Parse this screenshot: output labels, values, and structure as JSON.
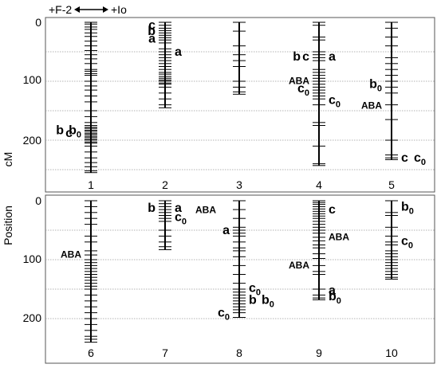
{
  "legend": {
    "left_label": "+F-2",
    "right_label": "+Io"
  },
  "axis": {
    "title_word1": "Position",
    "title_word2": "cM",
    "top_ticks": [
      "0",
      "100",
      "200"
    ],
    "bottom_ticks": [
      "0",
      "100",
      "200"
    ]
  },
  "colors": {
    "frame": "#555555",
    "gridline": "#9a9a9a",
    "ink": "#000000"
  },
  "chart_data": {
    "type": "linkage-map",
    "unit": "cM",
    "ylim": [
      0,
      260
    ],
    "gridlines_cM": [
      50,
      100,
      150,
      200,
      250
    ],
    "panels": [
      {
        "chromosomes": [
          {
            "label": "1",
            "length": 255,
            "markers": [
              0,
              3,
              8,
              12,
              18,
              24,
              32,
              40,
              48,
              55,
              62,
              70,
              80,
              83,
              87,
              90,
              100,
              108,
              115,
              125,
              135,
              150,
              160,
              170,
              175,
              178,
              180,
              183,
              185,
              188,
              190,
              193,
              195,
              198,
              200,
              203,
              205,
              210,
              220,
              230,
              238,
              245,
              252,
              255
            ],
            "qtl": [
              {
                "text": "b",
                "sub": "0",
                "pos": 183,
                "side": "left"
              },
              {
                "text": "c",
                "pos": 188,
                "side": "left"
              },
              {
                "text": "b",
                "pos": 183,
                "side": "left"
              }
            ]
          },
          {
            "label": "2",
            "length": 145,
            "markers": [
              0,
              5,
              10,
              14,
              18,
              22,
              26,
              30,
              35,
              45,
              50,
              55,
              60,
              65,
              70,
              75,
              80,
              85,
              88,
              92,
              95,
              98,
              100,
              103,
              105,
              110,
              120,
              130,
              140,
              145
            ],
            "qtl": [
              {
                "text": "c",
                "pos": 5,
                "side": "left"
              },
              {
                "text": "b",
                "pos": 15,
                "side": "left"
              },
              {
                "text": "a",
                "pos": 28,
                "side": "left"
              },
              {
                "text": "a",
                "pos": 50,
                "side": "right"
              }
            ]
          },
          {
            "label": "3",
            "length": 122,
            "markers": [
              0,
              15,
              40,
              55,
              65,
              75,
              100,
              110,
              118,
              122
            ],
            "qtl": []
          },
          {
            "label": "4",
            "length": 243,
            "markers": [
              0,
              5,
              25,
              30,
              50,
              55,
              60,
              65,
              80,
              85,
              90,
              95,
              100,
              105,
              110,
              115,
              120,
              125,
              130,
              140,
              170,
              175,
              210,
              240,
              243
            ],
            "qtl": [
              {
                "text": "c",
                "pos": 58,
                "side": "left"
              },
              {
                "text": "b",
                "pos": 58,
                "side": "left"
              },
              {
                "text": "a",
                "pos": 58,
                "side": "right"
              },
              {
                "text": "ABA",
                "pos": 98,
                "side": "left",
                "small": true
              },
              {
                "text": "c",
                "sub": "0",
                "pos": 112,
                "side": "left"
              },
              {
                "text": "c",
                "sub": "0",
                "pos": 132,
                "side": "right"
              }
            ]
          },
          {
            "label": "5",
            "length": 233,
            "markers": [
              0,
              10,
              25,
              40,
              60,
              70,
              80,
              90,
              100,
              110,
              120,
              140,
              165,
              200,
              225,
              230,
              233
            ],
            "qtl": [
              {
                "text": "b",
                "sub": "0",
                "pos": 105,
                "side": "left"
              },
              {
                "text": "ABA",
                "pos": 140,
                "side": "left",
                "small": true
              },
              {
                "text": "c",
                "pos": 230,
                "side": "right"
              },
              {
                "text": "c",
                "sub": "0",
                "pos": 230,
                "side": "right"
              }
            ]
          }
        ]
      },
      {
        "chromosomes": [
          {
            "label": "6",
            "length": 240,
            "markers": [
              0,
              10,
              20,
              30,
              40,
              60,
              70,
              85,
              92,
              100,
              105,
              110,
              115,
              120,
              125,
              130,
              135,
              140,
              145,
              150,
              160,
              170,
              180,
              190,
              200,
              210,
              220,
              230,
              235,
              240
            ],
            "qtl": [
              {
                "text": "ABA",
                "pos": 90,
                "side": "left",
                "small": true
              }
            ]
          },
          {
            "label": "7",
            "length": 83,
            "markers": [
              0,
              5,
              10,
              15,
              20,
              25,
              30,
              35,
              50,
              60,
              70,
              78,
              83
            ],
            "qtl": [
              {
                "text": "b",
                "pos": 12,
                "side": "left"
              },
              {
                "text": "a",
                "pos": 12,
                "side": "right"
              },
              {
                "text": "ABA",
                "pos": 14,
                "side": "right",
                "small": true
              },
              {
                "text": "c",
                "sub": "0",
                "pos": 28,
                "side": "right"
              }
            ]
          },
          {
            "label": "8",
            "length": 198,
            "markers": [
              0,
              15,
              30,
              45,
              50,
              55,
              60,
              70,
              80,
              85,
              95,
              110,
              125,
              140,
              150,
              155,
              160,
              165,
              170,
              175,
              180,
              185,
              190,
              198
            ],
            "qtl": [
              {
                "text": "a",
                "pos": 50,
                "side": "left"
              },
              {
                "text": "c",
                "sub": "0",
                "pos": 148,
                "side": "right"
              },
              {
                "text": "b",
                "pos": 168,
                "side": "right"
              },
              {
                "text": "b",
                "sub": "0",
                "pos": 168,
                "side": "right"
              },
              {
                "text": "c",
                "sub": "0",
                "pos": 190,
                "side": "left"
              }
            ]
          },
          {
            "label": "9",
            "length": 168,
            "markers": [
              0,
              3,
              6,
              10,
              14,
              18,
              22,
              26,
              30,
              35,
              40,
              45,
              50,
              55,
              62,
              68,
              75,
              80,
              90,
              98,
              110,
              120,
              125,
              150,
              160,
              165,
              168
            ],
            "qtl": [
              {
                "text": "c",
                "pos": 15,
                "side": "right"
              },
              {
                "text": "ABA",
                "pos": 60,
                "side": "right",
                "small": true
              },
              {
                "text": "ABA",
                "pos": 108,
                "side": "left",
                "small": true
              },
              {
                "text": "b",
                "sub": "0",
                "pos": 162,
                "side": "right"
              },
              {
                "text": "a",
                "pos": 152,
                "side": "right"
              }
            ]
          },
          {
            "label": "10",
            "length": 133,
            "markers": [
              0,
              20,
              25,
              45,
              60,
              70,
              75,
              85,
              90,
              95,
              100,
              105,
              110,
              115,
              120,
              125,
              130,
              133
            ],
            "qtl": [
              {
                "text": "b",
                "sub": "0",
                "pos": 10,
                "side": "right"
              },
              {
                "text": "c",
                "sub": "0",
                "pos": 68,
                "side": "right"
              }
            ]
          }
        ]
      }
    ]
  }
}
